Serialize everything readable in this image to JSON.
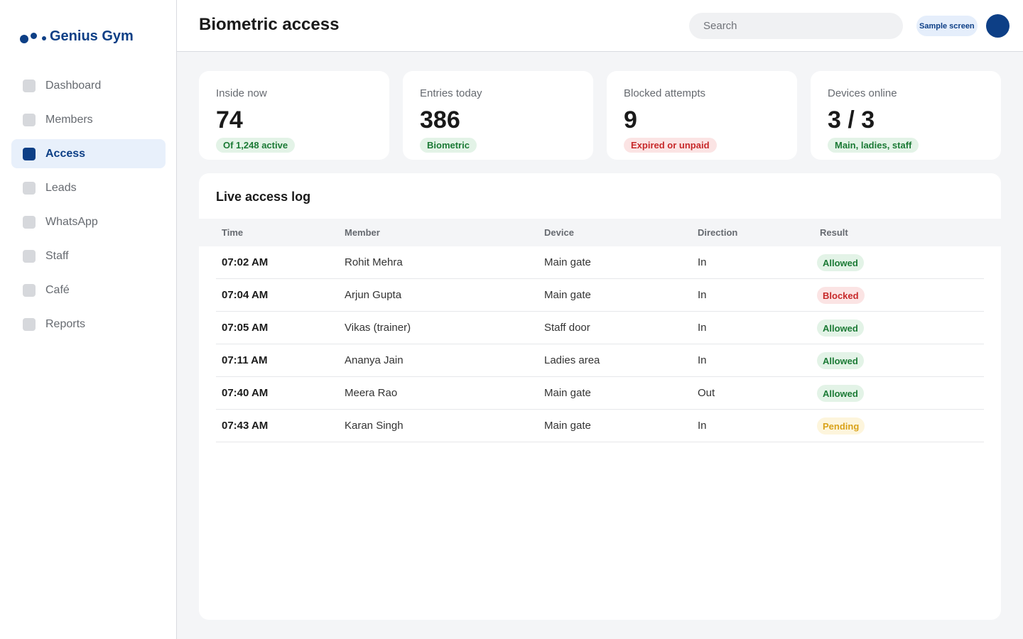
{
  "brand": {
    "name": "Genius Gym",
    "color": "#0d3f86"
  },
  "sidebar": {
    "items": [
      {
        "label": "Dashboard",
        "icon": "dashboard-icon",
        "active": false
      },
      {
        "label": "Members",
        "icon": "members-icon",
        "active": false
      },
      {
        "label": "Access",
        "icon": "access-icon",
        "active": true
      },
      {
        "label": "Leads",
        "icon": "leads-icon",
        "active": false
      },
      {
        "label": "WhatsApp",
        "icon": "whatsapp-icon",
        "active": false
      },
      {
        "label": "Staff",
        "icon": "staff-icon",
        "active": false
      },
      {
        "label": "Café",
        "icon": "cafe-icon",
        "active": false
      },
      {
        "label": "Reports",
        "icon": "reports-icon",
        "active": false
      }
    ]
  },
  "header": {
    "title": "Biometric access",
    "search_placeholder": "Search",
    "sample_badge": "Sample screen"
  },
  "stats": [
    {
      "label": "Inside now",
      "value": "74",
      "badge": "Of 1,248 active",
      "badge_tone": "green"
    },
    {
      "label": "Entries today",
      "value": "386",
      "badge": "Biometric",
      "badge_tone": "green"
    },
    {
      "label": "Blocked attempts",
      "value": "9",
      "badge": "Expired or unpaid",
      "badge_tone": "red"
    },
    {
      "label": "Devices online",
      "value": "3 / 3",
      "badge": "Main, ladies, staff",
      "badge_tone": "green"
    }
  ],
  "log": {
    "title": "Live access log",
    "columns": [
      "Time",
      "Member",
      "Device",
      "Direction",
      "Result"
    ],
    "rows": [
      {
        "time": "07:02 AM",
        "member": "Rohit Mehra",
        "device": "Main gate",
        "direction": "In",
        "result": "Allowed",
        "tone": "green"
      },
      {
        "time": "07:04 AM",
        "member": "Arjun Gupta",
        "device": "Main gate",
        "direction": "In",
        "result": "Blocked",
        "tone": "red"
      },
      {
        "time": "07:05 AM",
        "member": "Vikas (trainer)",
        "device": "Staff door",
        "direction": "In",
        "result": "Allowed",
        "tone": "green"
      },
      {
        "time": "07:11 AM",
        "member": "Ananya Jain",
        "device": "Ladies area",
        "direction": "In",
        "result": "Allowed",
        "tone": "green"
      },
      {
        "time": "07:40 AM",
        "member": "Meera Rao",
        "device": "Main gate",
        "direction": "Out",
        "result": "Allowed",
        "tone": "green"
      },
      {
        "time": "07:43 AM",
        "member": "Karan Singh",
        "device": "Main gate",
        "direction": "In",
        "result": "Pending",
        "tone": "yellow"
      }
    ]
  },
  "colors": {
    "accent": "#0d3f86",
    "allowed": "#1b7a35",
    "blocked": "#c7292a",
    "pending": "#d9a21a"
  }
}
